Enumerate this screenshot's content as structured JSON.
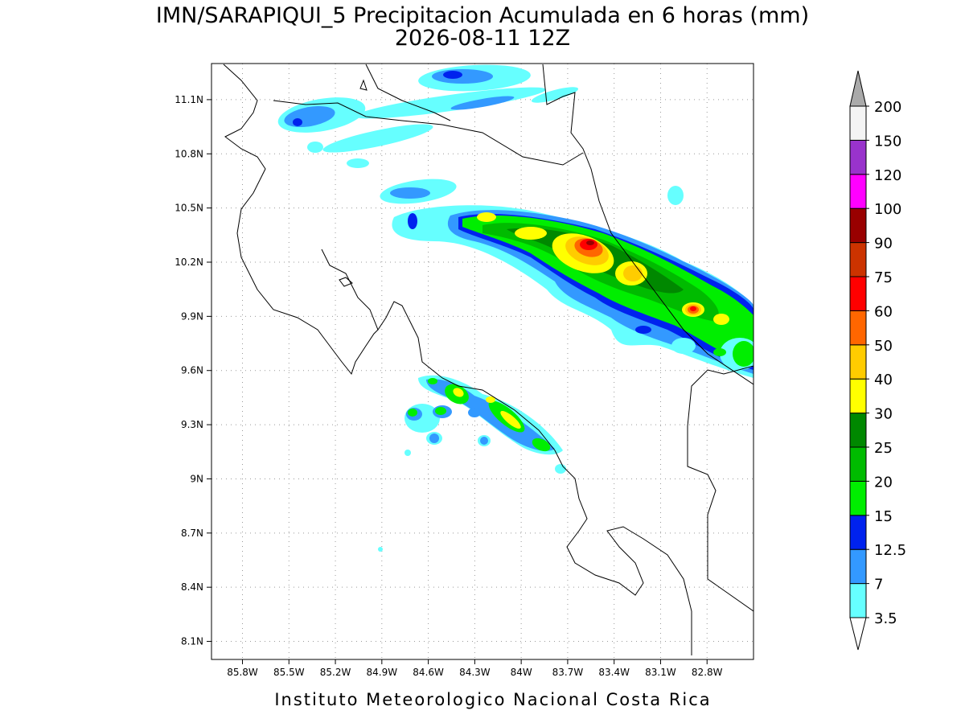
{
  "map": {
    "title": "IMN/SARAPIQUI_5 Precipitacion Acumulada en 6 horas (mm)",
    "subtitle": "2026-08-11 12Z",
    "footer": "Instituto Meteorologico Nacional Costa Rica",
    "xlim": [
      -86.0,
      -82.5
    ],
    "ylim": [
      8.0,
      11.3
    ],
    "grid": true,
    "xticks": [
      {
        "value": -85.8,
        "label": "85.8W"
      },
      {
        "value": -85.5,
        "label": "85.5W"
      },
      {
        "value": -85.2,
        "label": "85.2W"
      },
      {
        "value": -84.9,
        "label": "84.9W"
      },
      {
        "value": -84.6,
        "label": "84.6W"
      },
      {
        "value": -84.3,
        "label": "84.3W"
      },
      {
        "value": -84.0,
        "label": "84W"
      },
      {
        "value": -83.7,
        "label": "83.7W"
      },
      {
        "value": -83.4,
        "label": "83.4W"
      },
      {
        "value": -83.1,
        "label": "83.1W"
      },
      {
        "value": -82.8,
        "label": "82.8W"
      }
    ],
    "yticks": [
      {
        "value": 8.1,
        "label": "8.1N"
      },
      {
        "value": 8.4,
        "label": "8.4N"
      },
      {
        "value": 8.7,
        "label": "8.7N"
      },
      {
        "value": 9.0,
        "label": "9N"
      },
      {
        "value": 9.3,
        "label": "9.3N"
      },
      {
        "value": 9.6,
        "label": "9.6N"
      },
      {
        "value": 9.9,
        "label": "9.9N"
      },
      {
        "value": 10.2,
        "label": "10.2N"
      },
      {
        "value": 10.5,
        "label": "10.5N"
      },
      {
        "value": 10.8,
        "label": "10.8N"
      },
      {
        "value": 11.1,
        "label": "11.1N"
      }
    ],
    "colorbar": {
      "levels": [
        3.5,
        7,
        12.5,
        15,
        20,
        25,
        30,
        40,
        50,
        60,
        75,
        90,
        100,
        120,
        150,
        200
      ],
      "colors": [
        "#ffffff",
        "#66ffff",
        "#3399ff",
        "#0022ee",
        "#00ee00",
        "#00bb00",
        "#008800",
        "#ffff00",
        "#ffcc00",
        "#ff6600",
        "#ff0000",
        "#cc3300",
        "#990000",
        "#ff00ff",
        "#9933cc",
        "#f4f4f4",
        "#aaaaaa"
      ]
    }
  }
}
